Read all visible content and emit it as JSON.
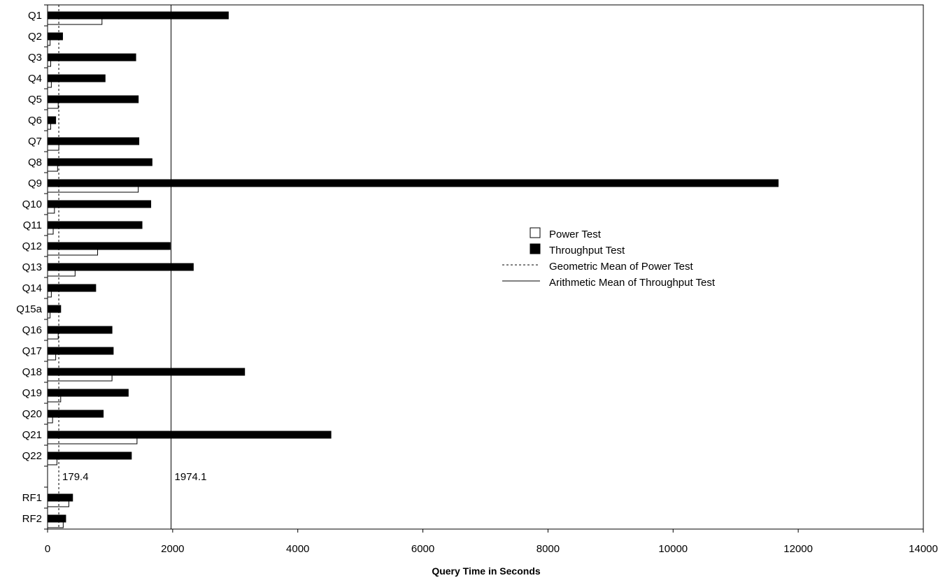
{
  "chart_data": {
    "type": "bar",
    "orientation": "horizontal",
    "categories": [
      "Q1",
      "Q2",
      "Q3",
      "Q4",
      "Q5",
      "Q6",
      "Q7",
      "Q8",
      "Q9",
      "Q10",
      "Q11",
      "Q12",
      "Q13",
      "Q14",
      "Q15a",
      "Q16",
      "Q17",
      "Q18",
      "Q19",
      "Q20",
      "Q21",
      "Q22",
      "",
      "RF1",
      "RF2"
    ],
    "series": [
      {
        "name": "Power Test",
        "fill": "#ffffff",
        "values": [
          870,
          40,
          50,
          60,
          170,
          50,
          180,
          160,
          1450,
          110,
          90,
          800,
          440,
          60,
          40,
          170,
          130,
          1030,
          210,
          80,
          1430,
          150,
          null,
          340,
          250
        ]
      },
      {
        "name": "Throughput Test",
        "fill": "#000000",
        "values": [
          2890,
          240,
          1410,
          920,
          1450,
          130,
          1460,
          1670,
          11680,
          1650,
          1510,
          1960,
          2330,
          770,
          210,
          1030,
          1050,
          3150,
          1290,
          890,
          4530,
          1340,
          null,
          400,
          290
        ]
      }
    ],
    "reference_lines": [
      {
        "name": "Geometric Mean of Power Test",
        "value": 179.4,
        "label": "179.4",
        "style": "dashed"
      },
      {
        "name": "Arithmetic Mean of Throughput Test",
        "value": 1974.1,
        "label": "1974.1",
        "style": "solid"
      }
    ],
    "xlabel": "Query Time in Seconds",
    "ylabel": "",
    "title": "",
    "xlim": [
      0,
      14000
    ],
    "xticks": [
      "0",
      "2000",
      "4000",
      "6000",
      "8000",
      "10000",
      "12000",
      "14000"
    ],
    "grid": false,
    "legend_position": "center-right"
  }
}
